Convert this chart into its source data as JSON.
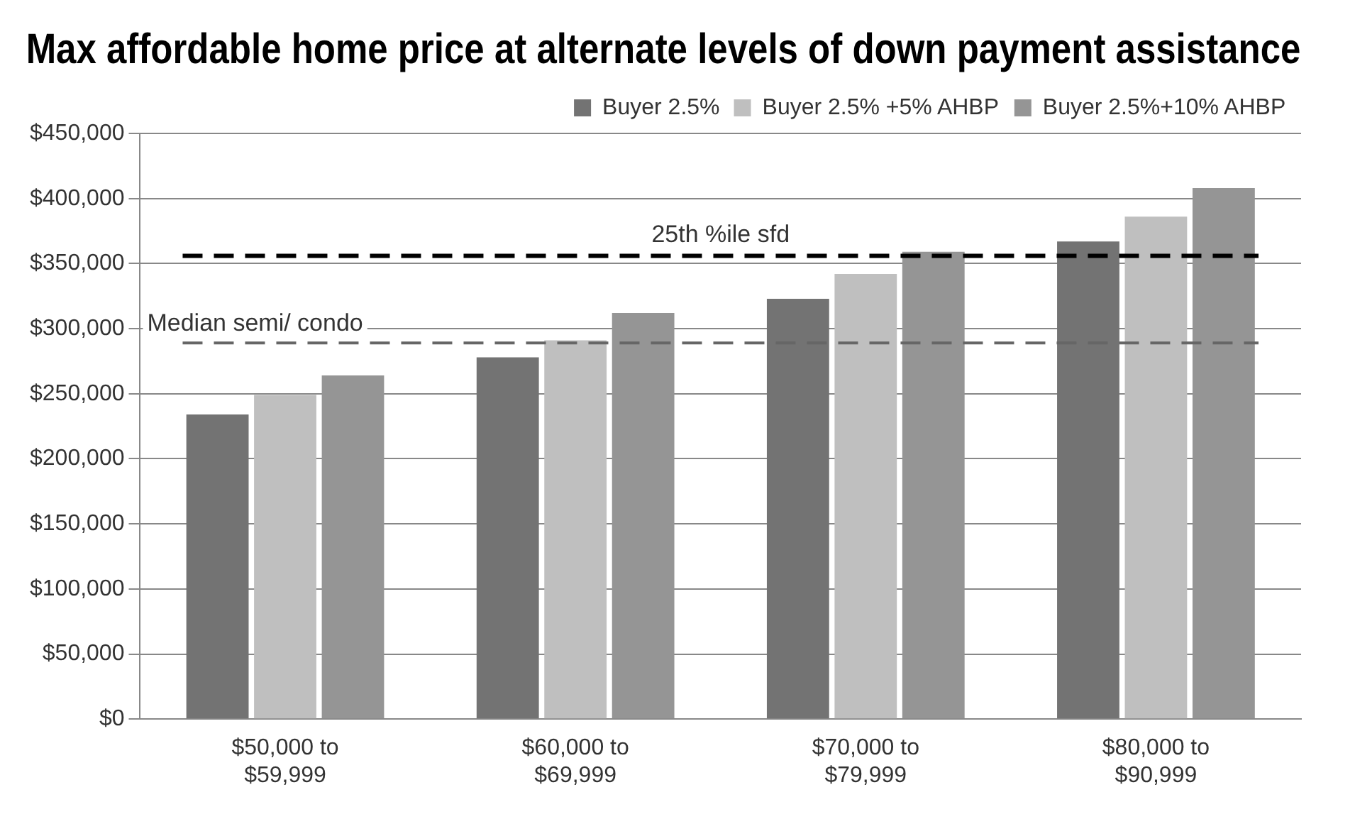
{
  "chart_data": {
    "type": "bar",
    "title": "Max affordable home price at alternate levels of down payment assistance",
    "categories": [
      "$50,000 to $59,999",
      "$60,000 to $69,999",
      "$70,000 to $79,999",
      "$80,000 to $90,999"
    ],
    "series": [
      {
        "name": "Buyer 2.5%",
        "color": "#737373",
        "values": [
          234000,
          278000,
          323000,
          367000
        ]
      },
      {
        "name": "Buyer 2.5% +5% AHBP",
        "color": "#bfbfbf",
        "values": [
          249000,
          291000,
          342000,
          386000
        ]
      },
      {
        "name": "Buyer 2.5%+10% AHBP",
        "color": "#959595",
        "values": [
          264000,
          312000,
          359000,
          408000
        ]
      }
    ],
    "ylim": [
      0,
      450000
    ],
    "yticks": [
      {
        "value": 0,
        "label": "$0"
      },
      {
        "value": 50000,
        "label": "$50,000"
      },
      {
        "value": 100000,
        "label": "$100,000"
      },
      {
        "value": 150000,
        "label": "$150,000"
      },
      {
        "value": 200000,
        "label": "$200,000"
      },
      {
        "value": 250000,
        "label": "$250,000"
      },
      {
        "value": 300000,
        "label": "$300,000"
      },
      {
        "value": 350000,
        "label": "$350,000"
      },
      {
        "value": 400000,
        "label": "$400,000"
      },
      {
        "value": 450000,
        "label": "$450,000"
      }
    ],
    "ref_lines": [
      {
        "axis": "y",
        "value": 356000,
        "label": "25th %ile sfd",
        "color": "#000000",
        "line_style": "dashed"
      },
      {
        "axis": "y",
        "value": 289000,
        "label": "Median semi/ condo",
        "color": "#666666",
        "line_style": "dashed"
      }
    ],
    "grid": "y",
    "legend": "top right"
  }
}
